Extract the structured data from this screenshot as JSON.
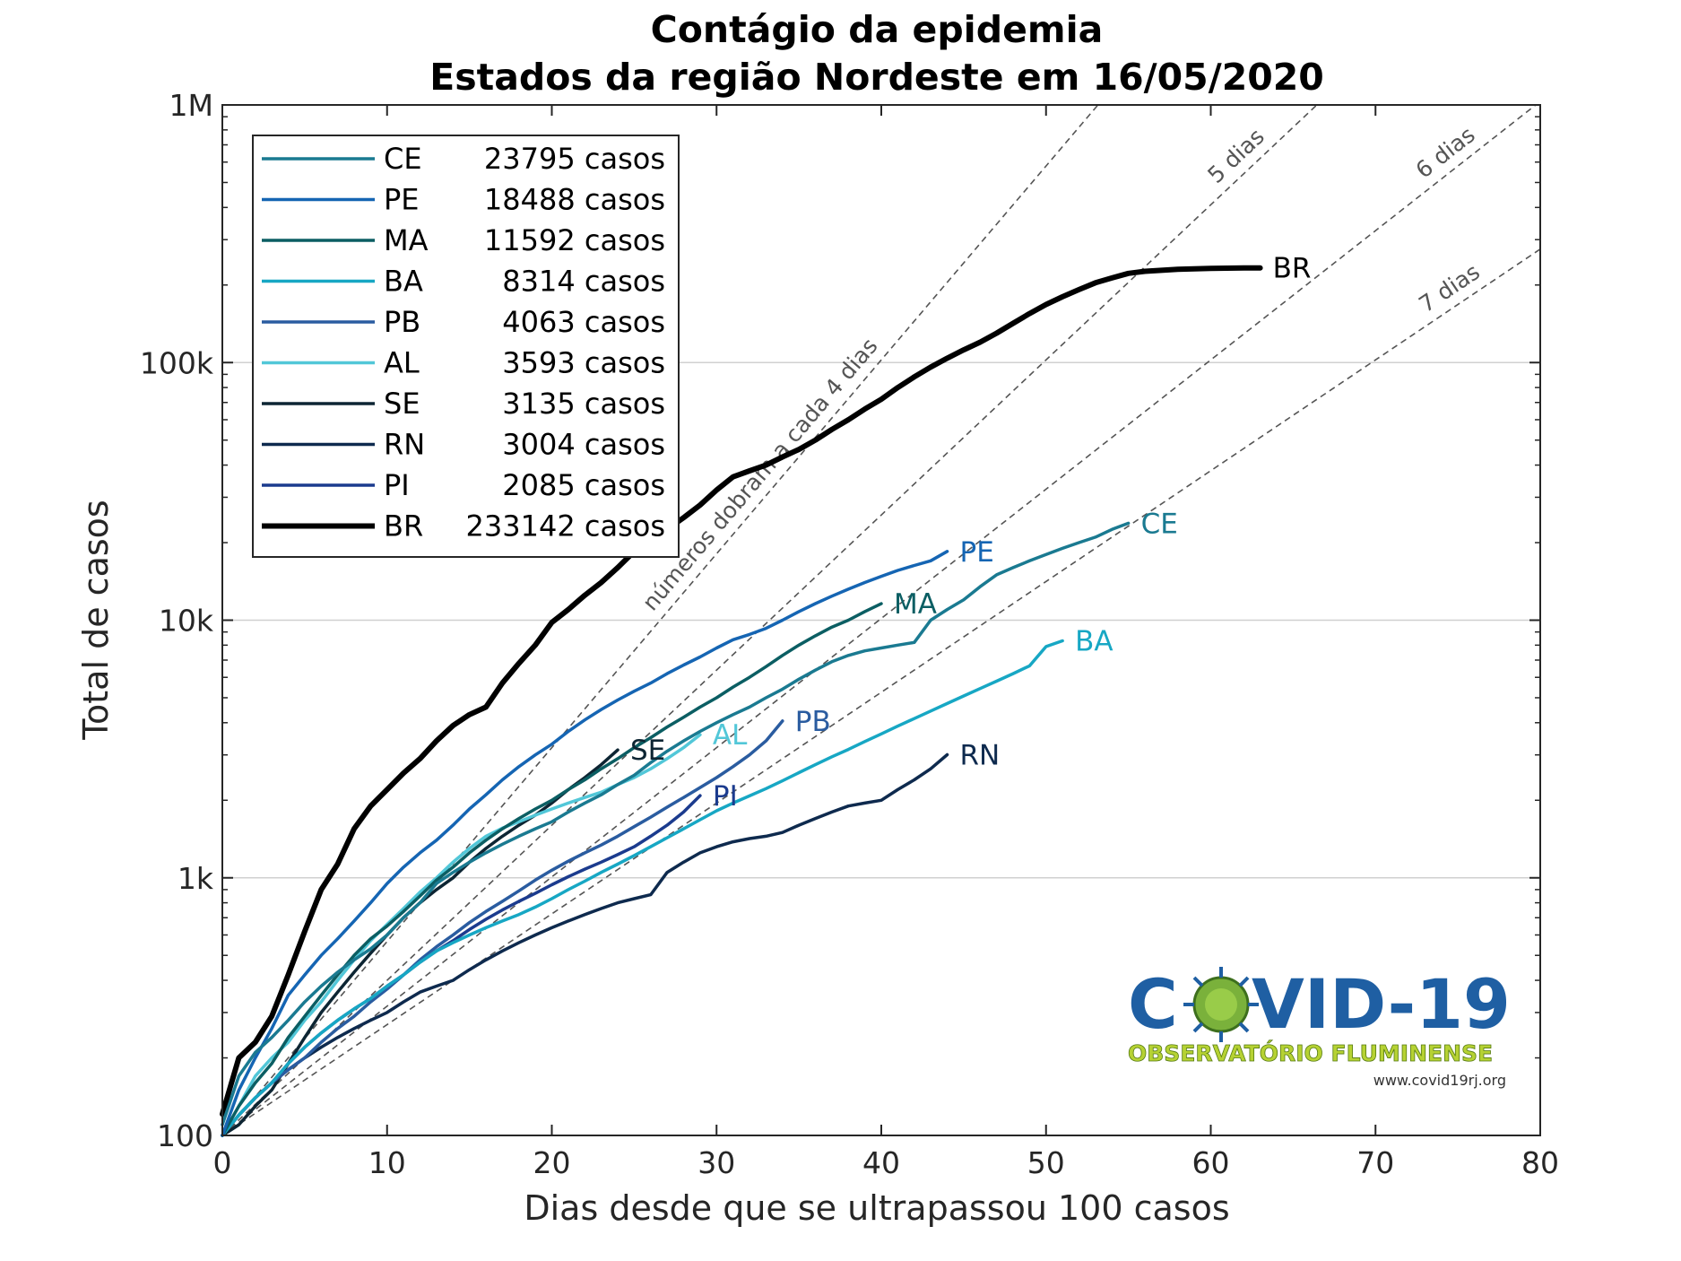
{
  "chart_data": {
    "type": "line",
    "title": "Contágio da epidemia",
    "subtitle": "Estados da região Nordeste em 16/05/2020",
    "xlabel": "Dias desde que se ultrapassou 100 casos",
    "ylabel": "Total de casos",
    "xlim": [
      0,
      80
    ],
    "ylim": [
      100,
      1000000
    ],
    "yscale": "log",
    "xticks": [
      "0",
      "10",
      "20",
      "30",
      "40",
      "50",
      "60",
      "70",
      "80"
    ],
    "yticks": [
      "100",
      "1k",
      "10k",
      "100k",
      "1M"
    ],
    "grid": "horizontal",
    "legend_position": "top-left",
    "series": [
      {
        "name": "CE",
        "legend": "23795 casos",
        "color": "#1a7a91",
        "width": 3.5,
        "x": [
          0,
          1,
          2,
          3,
          4,
          5,
          6,
          7,
          8,
          9,
          10,
          11,
          12,
          13,
          14,
          15,
          16,
          17,
          18,
          19,
          20,
          21,
          22,
          23,
          24,
          25,
          26,
          27,
          28,
          29,
          30,
          31,
          32,
          33,
          34,
          35,
          36,
          37,
          38,
          39,
          40,
          41,
          42,
          43,
          44,
          45,
          46,
          47,
          48,
          49,
          50,
          51,
          52,
          53,
          54,
          55
        ],
        "y": [
          110,
          170,
          210,
          240,
          280,
          330,
          380,
          430,
          480,
          530,
          600,
          700,
          800,
          950,
          1050,
          1150,
          1250,
          1350,
          1450,
          1550,
          1650,
          1800,
          1950,
          2100,
          2300,
          2500,
          2800,
          3100,
          3400,
          3700,
          4000,
          4300,
          4600,
          5000,
          5400,
          5900,
          6400,
          6900,
          7300,
          7600,
          7800,
          8000,
          8200,
          10000,
          11000,
          12000,
          13500,
          15000,
          16000,
          17000,
          18000,
          19000,
          20000,
          21000,
          22500,
          23795
        ]
      },
      {
        "name": "PE",
        "legend": "18488 casos",
        "color": "#1565b3",
        "width": 3.5,
        "x": [
          0,
          1,
          2,
          3,
          4,
          5,
          6,
          7,
          8,
          9,
          10,
          11,
          12,
          13,
          14,
          15,
          16,
          17,
          18,
          19,
          20,
          21,
          22,
          23,
          24,
          25,
          26,
          27,
          28,
          29,
          30,
          31,
          32,
          33,
          34,
          35,
          36,
          37,
          38,
          39,
          40,
          41,
          42,
          43,
          44
        ],
        "y": [
          100,
          150,
          200,
          260,
          350,
          420,
          500,
          580,
          680,
          800,
          950,
          1100,
          1250,
          1400,
          1600,
          1850,
          2100,
          2400,
          2700,
          3000,
          3300,
          3700,
          4100,
          4500,
          4900,
          5300,
          5700,
          6200,
          6700,
          7200,
          7800,
          8400,
          8800,
          9300,
          10000,
          10800,
          11600,
          12400,
          13200,
          14000,
          14800,
          15600,
          16300,
          17000,
          18488
        ]
      },
      {
        "name": "MA",
        "legend": "11592 casos",
        "color": "#0b5e63",
        "width": 3.5,
        "x": [
          0,
          1,
          2,
          3,
          4,
          5,
          6,
          7,
          8,
          9,
          10,
          11,
          12,
          13,
          14,
          15,
          16,
          17,
          18,
          19,
          20,
          21,
          22,
          23,
          24,
          25,
          26,
          27,
          28,
          29,
          30,
          31,
          32,
          33,
          34,
          35,
          36,
          37,
          38,
          39,
          40
        ],
        "y": [
          100,
          130,
          160,
          190,
          240,
          290,
          350,
          420,
          500,
          580,
          650,
          740,
          850,
          980,
          1100,
          1250,
          1400,
          1550,
          1700,
          1850,
          2000,
          2200,
          2400,
          2650,
          2900,
          3200,
          3500,
          3850,
          4200,
          4600,
          5000,
          5500,
          6000,
          6600,
          7300,
          8000,
          8700,
          9400,
          10000,
          10800,
          11592
        ]
      },
      {
        "name": "BA",
        "legend": "8314 casos",
        "color": "#17a7c4",
        "width": 3.5,
        "x": [
          0,
          1,
          2,
          3,
          4,
          5,
          6,
          7,
          8,
          9,
          10,
          11,
          12,
          13,
          14,
          15,
          16,
          17,
          18,
          19,
          20,
          21,
          22,
          23,
          24,
          25,
          26,
          27,
          28,
          29,
          30,
          31,
          32,
          33,
          34,
          35,
          36,
          37,
          38,
          39,
          40,
          41,
          42,
          43,
          44,
          45,
          46,
          47,
          48,
          49,
          50,
          51
        ],
        "y": [
          100,
          120,
          140,
          160,
          190,
          220,
          250,
          280,
          310,
          340,
          380,
          420,
          470,
          520,
          560,
          600,
          640,
          680,
          720,
          770,
          830,
          900,
          970,
          1050,
          1130,
          1220,
          1320,
          1430,
          1550,
          1680,
          1820,
          1950,
          2080,
          2220,
          2380,
          2560,
          2750,
          2950,
          3150,
          3380,
          3620,
          3880,
          4150,
          4440,
          4750,
          5080,
          5430,
          5800,
          6200,
          6650,
          7900,
          8314
        ]
      },
      {
        "name": "PB",
        "legend": "4063 casos",
        "color": "#2a5ca0",
        "width": 3.5,
        "x": [
          0,
          1,
          2,
          3,
          4,
          5,
          6,
          7,
          8,
          9,
          10,
          11,
          12,
          13,
          14,
          15,
          16,
          17,
          18,
          19,
          20,
          21,
          22,
          23,
          24,
          25,
          26,
          27,
          28,
          29,
          30,
          31,
          32,
          33,
          34
        ],
        "y": [
          100,
          120,
          140,
          160,
          180,
          200,
          230,
          260,
          290,
          330,
          370,
          420,
          480,
          540,
          600,
          670,
          740,
          810,
          890,
          980,
          1070,
          1160,
          1250,
          1340,
          1450,
          1580,
          1720,
          1880,
          2050,
          2240,
          2450,
          2700,
          3000,
          3400,
          4063
        ]
      },
      {
        "name": "AL",
        "legend": "3593 casos",
        "color": "#52c7d8",
        "width": 3.5,
        "x": [
          0,
          1,
          2,
          3,
          4,
          5,
          6,
          7,
          8,
          9,
          10,
          11,
          12,
          13,
          14,
          15,
          16,
          17,
          18,
          19,
          20,
          21,
          22,
          23,
          24,
          25,
          26,
          27,
          28,
          29
        ],
        "y": [
          100,
          130,
          170,
          200,
          230,
          280,
          330,
          400,
          480,
          570,
          660,
          760,
          880,
          1000,
          1150,
          1300,
          1450,
          1560,
          1650,
          1750,
          1850,
          1950,
          2050,
          2150,
          2300,
          2450,
          2650,
          2900,
          3200,
          3593
        ]
      },
      {
        "name": "SE",
        "legend": "3135 casos",
        "color": "#0d2533",
        "width": 3.5,
        "x": [
          0,
          1,
          2,
          3,
          4,
          5,
          6,
          7,
          8,
          9,
          10,
          11,
          12,
          13,
          14,
          15,
          16,
          17,
          18,
          19,
          20,
          21,
          22,
          23,
          24
        ],
        "y": [
          100,
          110,
          130,
          150,
          190,
          240,
          300,
          360,
          430,
          510,
          600,
          700,
          800,
          900,
          1000,
          1150,
          1300,
          1450,
          1600,
          1750,
          1950,
          2200,
          2450,
          2750,
          3135
        ]
      },
      {
        "name": "RN",
        "legend": "3004 casos",
        "color": "#0e2a4e",
        "width": 3.5,
        "x": [
          0,
          1,
          2,
          3,
          4,
          5,
          6,
          7,
          8,
          9,
          10,
          11,
          12,
          13,
          14,
          15,
          16,
          17,
          18,
          19,
          20,
          21,
          22,
          23,
          24,
          25,
          26,
          27,
          28,
          29,
          30,
          31,
          32,
          33,
          34,
          35,
          36,
          37,
          38,
          39,
          40,
          41,
          42,
          43,
          44
        ],
        "y": [
          100,
          120,
          140,
          160,
          180,
          200,
          220,
          240,
          260,
          280,
          300,
          330,
          360,
          380,
          400,
          440,
          480,
          520,
          560,
          600,
          640,
          680,
          720,
          760,
          800,
          830,
          860,
          1050,
          1150,
          1250,
          1320,
          1380,
          1420,
          1450,
          1500,
          1600,
          1700,
          1800,
          1900,
          1950,
          2000,
          2200,
          2400,
          2650,
          3004
        ]
      },
      {
        "name": "PI",
        "legend": "2085 casos",
        "color": "#1b3b8e",
        "width": 3.5,
        "x": [
          0,
          1,
          2,
          3,
          4,
          5,
          6,
          7,
          8,
          9,
          10,
          11,
          12,
          13,
          14,
          15,
          16,
          17,
          18,
          19,
          20,
          21,
          22,
          23,
          24,
          25,
          26,
          27,
          28,
          29
        ],
        "y": [
          100,
          120,
          140,
          160,
          190,
          220,
          250,
          280,
          310,
          340,
          380,
          420,
          470,
          520,
          570,
          630,
          690,
          750,
          810,
          870,
          940,
          1010,
          1080,
          1150,
          1230,
          1320,
          1450,
          1600,
          1800,
          2085
        ]
      },
      {
        "name": "BR",
        "legend": "233142 casos",
        "color": "#000000",
        "width": 6,
        "x": [
          0,
          1,
          2,
          3,
          4,
          5,
          6,
          7,
          8,
          9,
          10,
          11,
          12,
          13,
          14,
          15,
          16,
          17,
          18,
          19,
          20,
          21,
          22,
          23,
          24,
          25,
          26,
          27,
          28,
          29,
          30,
          31,
          32,
          33,
          34,
          35,
          36,
          37,
          38,
          39,
          40,
          41,
          42,
          43,
          44,
          45,
          46,
          47,
          48,
          49,
          50,
          51,
          52,
          53,
          54,
          55,
          56,
          57,
          58,
          59,
          60,
          61,
          62,
          63
        ],
        "y": [
          121,
          200,
          230,
          290,
          420,
          620,
          900,
          1130,
          1550,
          1900,
          2200,
          2550,
          2900,
          3400,
          3900,
          4300,
          4600,
          5700,
          6800,
          8000,
          9800,
          11000,
          12500,
          14000,
          16000,
          18500,
          20700,
          22500,
          25000,
          28000,
          32000,
          36000,
          38000,
          40000,
          43000,
          46000,
          50000,
          55000,
          60000,
          66000,
          72000,
          80000,
          88000,
          96000,
          104000,
          112000,
          120000,
          130000,
          142000,
          155000,
          168000,
          180000,
          192000,
          204000,
          213000,
          222000,
          226000,
          228000,
          230000,
          231000,
          232000,
          232500,
          233000,
          233142
        ]
      }
    ],
    "reference_lines": [
      {
        "label": "números dobram a cada 4 dias",
        "doubling_days": 4
      },
      {
        "label": "5 dias",
        "doubling_days": 5
      },
      {
        "label": "6 dias",
        "doubling_days": 6
      },
      {
        "label": "7 dias",
        "doubling_days": 7
      }
    ]
  },
  "logo": {
    "text_left": "C",
    "text_right": "VID-19",
    "subtitle": "OBSERVATÓRIO FLUMINENSE",
    "url": "www.covid19rj.org",
    "colors": {
      "main": "#1f5fa3",
      "virus": "#7ab13b",
      "sub": "#b6d233"
    }
  }
}
